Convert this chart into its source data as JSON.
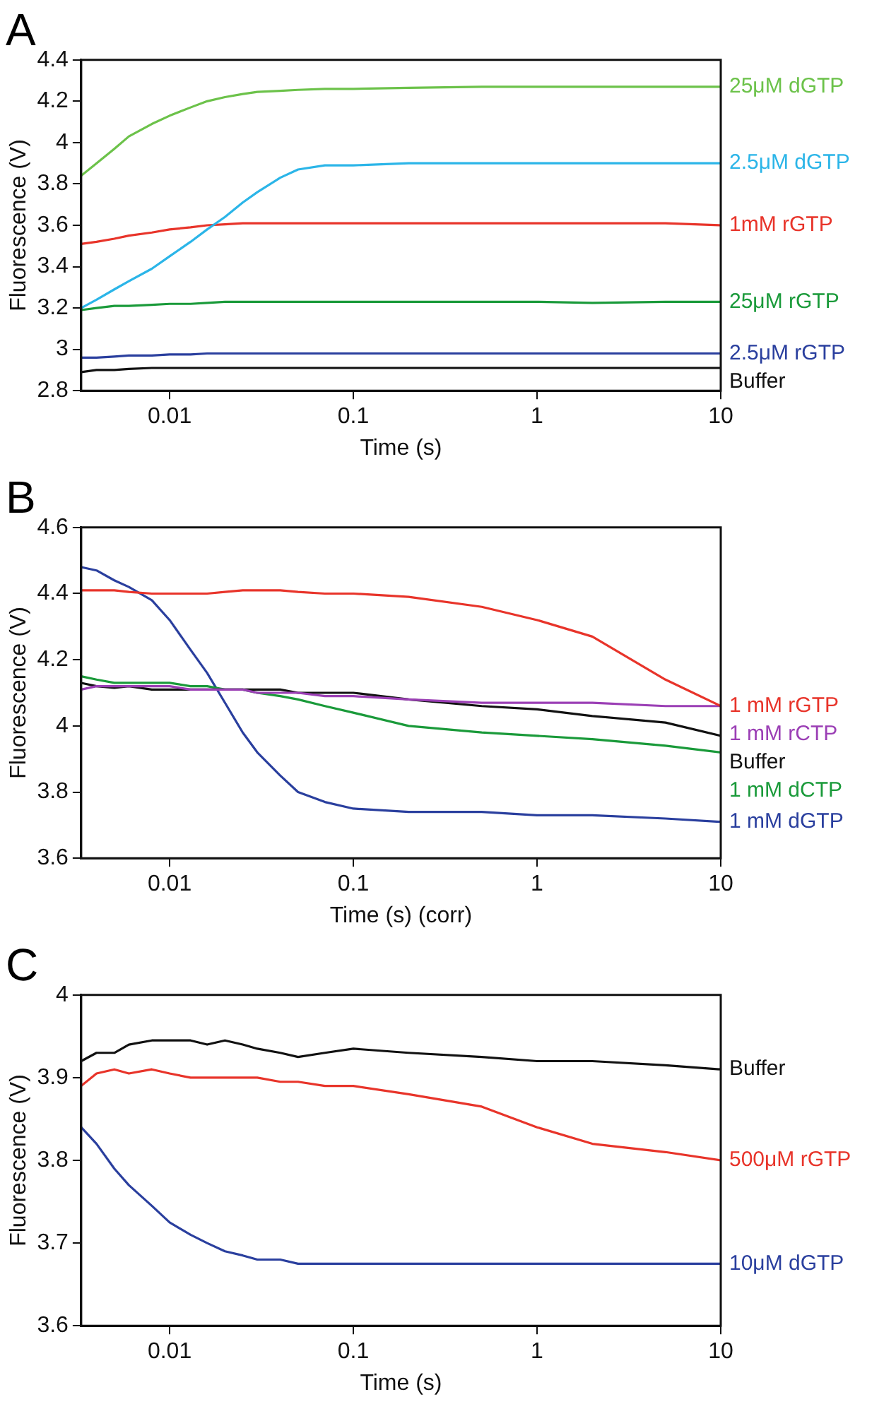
{
  "chart_data": [
    {
      "type": "line",
      "title": "A",
      "xlabel": "Time (s)",
      "ylabel": "Fluorescence (V)",
      "log": "x",
      "marker": "none",
      "xlim": [
        0.0033,
        10
      ],
      "xticks": [
        0.01,
        0.1,
        1,
        10
      ],
      "ylim": [
        2.8,
        4.4
      ],
      "yticks": [
        2.8,
        3,
        3.2,
        3.4,
        3.6,
        3.8,
        4,
        4.2,
        4.4
      ],
      "x": [
        0.0033,
        0.004,
        0.005,
        0.006,
        0.008,
        0.01,
        0.013,
        0.016,
        0.02,
        0.025,
        0.03,
        0.04,
        0.05,
        0.07,
        0.1,
        0.2,
        0.5,
        1,
        2,
        5,
        10
      ],
      "series": [
        {
          "name": "25μM dGTP",
          "color": "#6cc24a",
          "values": [
            3.84,
            3.9,
            3.97,
            4.03,
            4.09,
            4.13,
            4.17,
            4.2,
            4.22,
            4.235,
            4.245,
            4.25,
            4.255,
            4.26,
            4.26,
            4.265,
            4.27,
            4.27,
            4.27,
            4.27,
            4.27
          ]
        },
        {
          "name": "2.5μM dGTP",
          "color": "#2bb5e8",
          "values": [
            3.2,
            3.24,
            3.29,
            3.33,
            3.39,
            3.45,
            3.52,
            3.58,
            3.64,
            3.71,
            3.76,
            3.83,
            3.87,
            3.89,
            3.89,
            3.9,
            3.9,
            3.9,
            3.9,
            3.9,
            3.9
          ]
        },
        {
          "name": "1mM rGTP",
          "color": "#e8342a",
          "values": [
            3.51,
            3.52,
            3.535,
            3.55,
            3.565,
            3.58,
            3.59,
            3.6,
            3.605,
            3.61,
            3.61,
            3.61,
            3.61,
            3.61,
            3.61,
            3.61,
            3.61,
            3.61,
            3.61,
            3.61,
            3.6
          ]
        },
        {
          "name": "25μM rGTP",
          "color": "#1a9a3a",
          "values": [
            3.19,
            3.2,
            3.21,
            3.21,
            3.215,
            3.22,
            3.22,
            3.225,
            3.23,
            3.23,
            3.23,
            3.23,
            3.23,
            3.23,
            3.23,
            3.23,
            3.23,
            3.23,
            3.225,
            3.23,
            3.23
          ]
        },
        {
          "name": "2.5μM rGTP",
          "color": "#2a3f9e",
          "values": [
            2.96,
            2.96,
            2.965,
            2.97,
            2.97,
            2.975,
            2.975,
            2.98,
            2.98,
            2.98,
            2.98,
            2.98,
            2.98,
            2.98,
            2.98,
            2.98,
            2.98,
            2.98,
            2.98,
            2.98,
            2.98
          ]
        },
        {
          "name": "Buffer",
          "color": "#111111",
          "values": [
            2.89,
            2.9,
            2.9,
            2.905,
            2.91,
            2.91,
            2.91,
            2.91,
            2.91,
            2.91,
            2.91,
            2.91,
            2.91,
            2.91,
            2.91,
            2.91,
            2.91,
            2.91,
            2.91,
            2.91,
            2.91
          ]
        }
      ]
    },
    {
      "type": "line",
      "title": "B",
      "xlabel": "Time (s) (corr)",
      "ylabel": "Fluorescence (V)",
      "log": "x",
      "marker": "none",
      "xlim": [
        0.0033,
        10
      ],
      "xticks": [
        0.01,
        0.1,
        1,
        10
      ],
      "ylim": [
        3.6,
        4.6
      ],
      "yticks": [
        3.6,
        3.8,
        4,
        4.2,
        4.4,
        4.6
      ],
      "x": [
        0.0033,
        0.004,
        0.005,
        0.006,
        0.008,
        0.01,
        0.013,
        0.016,
        0.02,
        0.025,
        0.03,
        0.04,
        0.05,
        0.07,
        0.1,
        0.2,
        0.5,
        1,
        2,
        5,
        10
      ],
      "series": [
        {
          "name": "1 mM rGTP",
          "color": "#e8342a",
          "values": [
            4.41,
            4.41,
            4.41,
            4.405,
            4.4,
            4.4,
            4.4,
            4.4,
            4.405,
            4.41,
            4.41,
            4.41,
            4.405,
            4.4,
            4.4,
            4.39,
            4.36,
            4.32,
            4.27,
            4.14,
            4.06
          ]
        },
        {
          "name": "1 mM rCTP",
          "color": "#9b3fb5",
          "values": [
            4.11,
            4.12,
            4.12,
            4.12,
            4.12,
            4.12,
            4.11,
            4.11,
            4.11,
            4.11,
            4.1,
            4.1,
            4.1,
            4.09,
            4.09,
            4.08,
            4.07,
            4.07,
            4.07,
            4.06,
            4.06
          ]
        },
        {
          "name": "Buffer",
          "color": "#111111",
          "values": [
            4.13,
            4.12,
            4.115,
            4.12,
            4.11,
            4.11,
            4.11,
            4.11,
            4.11,
            4.11,
            4.11,
            4.11,
            4.1,
            4.1,
            4.1,
            4.08,
            4.06,
            4.05,
            4.03,
            4.01,
            3.97
          ]
        },
        {
          "name": "1 mM dCTP",
          "color": "#1a9a3a",
          "values": [
            4.15,
            4.14,
            4.13,
            4.13,
            4.13,
            4.13,
            4.12,
            4.12,
            4.11,
            4.11,
            4.1,
            4.09,
            4.08,
            4.06,
            4.04,
            4,
            3.98,
            3.97,
            3.96,
            3.94,
            3.92
          ]
        },
        {
          "name": "1 mM dGTP",
          "color": "#2a3f9e",
          "values": [
            4.48,
            4.47,
            4.44,
            4.42,
            4.38,
            4.32,
            4.23,
            4.16,
            4.07,
            3.98,
            3.92,
            3.85,
            3.8,
            3.77,
            3.75,
            3.74,
            3.74,
            3.73,
            3.73,
            3.72,
            3.71
          ]
        }
      ]
    },
    {
      "type": "line",
      "title": "C",
      "xlabel": "Time (s)",
      "ylabel": "Fluorescence (V)",
      "log": "x",
      "marker": "none",
      "xlim": [
        0.0033,
        10
      ],
      "xticks": [
        0.01,
        0.1,
        1,
        10
      ],
      "ylim": [
        3.6,
        4
      ],
      "yticks": [
        3.6,
        3.7,
        3.8,
        3.9,
        4
      ],
      "x": [
        0.0033,
        0.004,
        0.005,
        0.006,
        0.008,
        0.01,
        0.013,
        0.016,
        0.02,
        0.025,
        0.03,
        0.04,
        0.05,
        0.07,
        0.1,
        0.2,
        0.5,
        1,
        2,
        5,
        10
      ],
      "series": [
        {
          "name": "Buffer",
          "color": "#111111",
          "values": [
            3.92,
            3.93,
            3.93,
            3.94,
            3.945,
            3.945,
            3.945,
            3.94,
            3.945,
            3.94,
            3.935,
            3.93,
            3.925,
            3.93,
            3.935,
            3.93,
            3.925,
            3.92,
            3.92,
            3.915,
            3.91
          ]
        },
        {
          "name": "500μM rGTP",
          "color": "#e8342a",
          "values": [
            3.89,
            3.905,
            3.91,
            3.905,
            3.91,
            3.905,
            3.9,
            3.9,
            3.9,
            3.9,
            3.9,
            3.895,
            3.895,
            3.89,
            3.89,
            3.88,
            3.865,
            3.84,
            3.82,
            3.81,
            3.8
          ]
        },
        {
          "name": "10μM dGTP",
          "color": "#2a3f9e",
          "values": [
            3.84,
            3.82,
            3.79,
            3.77,
            3.745,
            3.725,
            3.71,
            3.7,
            3.69,
            3.685,
            3.68,
            3.68,
            3.675,
            3.675,
            3.675,
            3.675,
            3.675,
            3.675,
            3.675,
            3.675,
            3.675
          ]
        }
      ]
    }
  ]
}
